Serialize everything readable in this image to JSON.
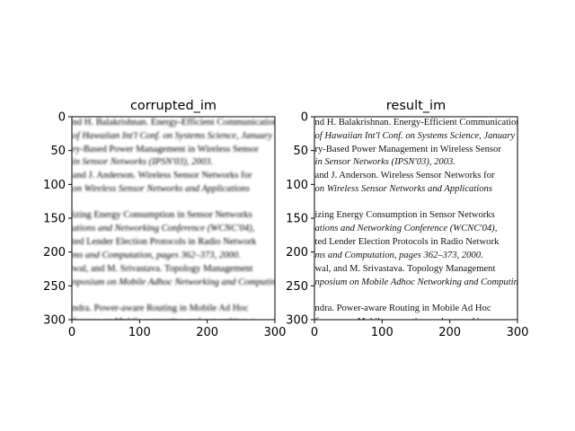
{
  "chart_data": [
    {
      "type": "image",
      "title": "corrupted_im",
      "xlim": [
        0,
        300
      ],
      "ylim": [
        300,
        0
      ],
      "xticks": [
        0,
        100,
        200,
        300
      ],
      "yticks": [
        0,
        50,
        100,
        150,
        200,
        250,
        300
      ],
      "blurred": true
    },
    {
      "type": "image",
      "title": "result_im",
      "xlim": [
        0,
        300
      ],
      "ylim": [
        300,
        0
      ],
      "xticks": [
        0,
        100,
        200,
        300
      ],
      "yticks": [
        0,
        50,
        100,
        150,
        200,
        250,
        300
      ],
      "blurred": false
    }
  ],
  "image_text": [
    {
      "text": "nd H. Balakrishnan.   Energy-Efficient Communication",
      "italic": false
    },
    {
      "text": "of Hawaiian Int'l Conf. on Systems Science, January",
      "italic": true
    },
    {
      "text": "ry-Based Power Management in Wireless Sensor",
      "italic": false
    },
    {
      "text": "in Sensor Networks (IPSN'03), 2003.",
      "italic": true
    },
    {
      "text": "and J. Anderson. Wireless Sensor Networks for",
      "italic": false
    },
    {
      "text": "on Wireless Sensor Networks and Applications",
      "italic": true
    },
    {
      "text": "",
      "italic": false
    },
    {
      "text": "izing Energy Consumption in Sensor Networks",
      "italic": false
    },
    {
      "text": "ations and Networking Conference (WCNC'04),",
      "italic": true
    },
    {
      "text": "ted Lender Election Protocols in Radio Network",
      "italic": false
    },
    {
      "text": "ms and Computation, pages 362–373, 2000.",
      "italic": true
    },
    {
      "text": "wal, and M. Srivastava.   Topology Management",
      "italic": false
    },
    {
      "text": "nposium on Mobile Adhoc Networking and Computing",
      "italic": true
    },
    {
      "text": "",
      "italic": false
    },
    {
      "text": "ndra.  Power-aware Routing in Mobile Ad Hoc",
      "italic": false
    },
    {
      "text": "ference on Mobile computing and networking, p",
      "italic": true
    }
  ]
}
